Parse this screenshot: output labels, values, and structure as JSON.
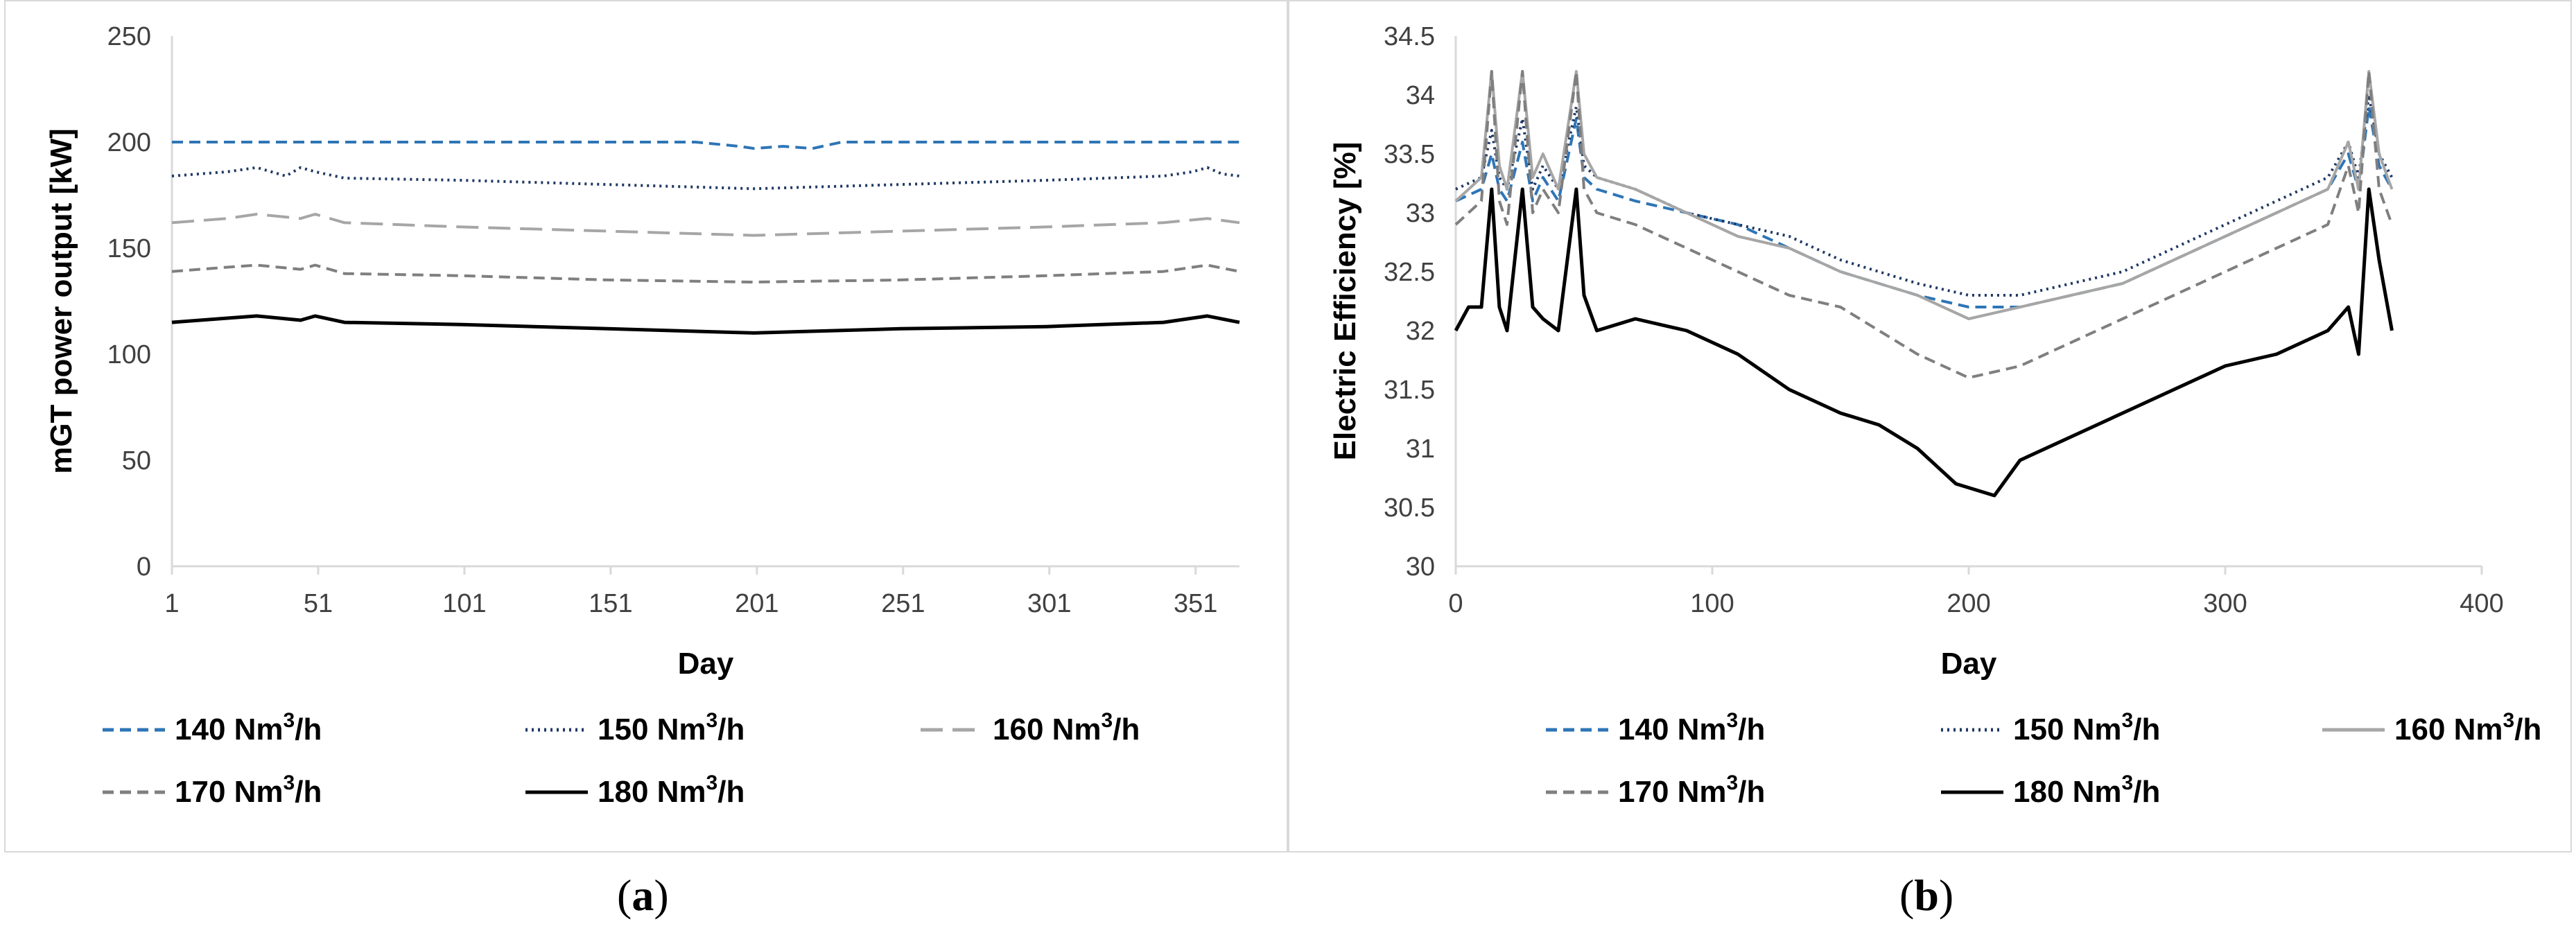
{
  "captions": {
    "a_open": "(",
    "a_letter": "a",
    "a_close": ")",
    "b_open": "(",
    "b_letter": "b",
    "b_close": ")"
  },
  "chart_data": [
    {
      "id": "a",
      "type": "line",
      "title": "",
      "xlabel": "Day",
      "ylabel": "mGT power output [kW]",
      "xlim": [
        1,
        366
      ],
      "ylim": [
        0,
        250
      ],
      "xticks": [
        1,
        51,
        101,
        151,
        201,
        251,
        301,
        351
      ],
      "yticks": [
        0,
        50,
        100,
        150,
        200,
        250
      ],
      "grid": false,
      "legend_position": "bottom",
      "series": [
        {
          "name": "140 Nm3/h",
          "label_main": "140 Nm",
          "label_sup": "3",
          "label_end": "/h",
          "color": "#2E75B6",
          "style": "dashed",
          "x": [
            1,
            100,
            180,
            195,
            200,
            210,
            220,
            230,
            250,
            366
          ],
          "y": [
            200,
            200,
            200,
            198,
            197,
            198,
            197,
            200,
            200,
            200
          ]
        },
        {
          "name": "150 Nm3/h",
          "label_main": "150 Nm",
          "label_sup": "3",
          "label_end": "/h",
          "color": "#1F3864",
          "style": "dotted",
          "x": [
            1,
            20,
            30,
            40,
            45,
            50,
            60,
            100,
            150,
            200,
            250,
            300,
            340,
            350,
            355,
            360,
            366
          ],
          "y": [
            184,
            186,
            188,
            184,
            188,
            186,
            183,
            182,
            180,
            178,
            180,
            182,
            184,
            186,
            188,
            185,
            184
          ]
        },
        {
          "name": "160 Nm3/h",
          "label_main": "160 Nm",
          "label_sup": "3",
          "label_end": "/h",
          "color": "#A6A6A6",
          "style": "longdash",
          "x": [
            1,
            20,
            30,
            45,
            50,
            60,
            100,
            150,
            200,
            250,
            300,
            340,
            355,
            366
          ],
          "y": [
            162,
            164,
            166,
            164,
            166,
            162,
            160,
            158,
            156,
            158,
            160,
            162,
            164,
            162
          ]
        },
        {
          "name": "170 Nm3/h",
          "label_main": "170 Nm",
          "label_sup": "3",
          "label_end": "/h",
          "color": "#7F7F7F",
          "style": "dashed",
          "x": [
            1,
            20,
            30,
            45,
            50,
            60,
            100,
            150,
            200,
            250,
            300,
            340,
            355,
            366
          ],
          "y": [
            139,
            141,
            142,
            140,
            142,
            138,
            137,
            135,
            134,
            135,
            137,
            139,
            142,
            139
          ]
        },
        {
          "name": "180 Nm3/h",
          "label_main": "180 Nm",
          "label_sup": "3",
          "label_end": "/h",
          "color": "#000000",
          "style": "solid",
          "x": [
            1,
            20,
            30,
            45,
            50,
            60,
            100,
            150,
            200,
            250,
            300,
            340,
            355,
            366
          ],
          "y": [
            115,
            117,
            118,
            116,
            118,
            115,
            114,
            112,
            110,
            112,
            113,
            115,
            118,
            115
          ]
        }
      ]
    },
    {
      "id": "b",
      "type": "line",
      "title": "",
      "xlabel": "Day",
      "ylabel": "Electric Efficiency [%]",
      "xlim": [
        0,
        400
      ],
      "ylim": [
        30,
        34.5
      ],
      "xticks": [
        0,
        100,
        200,
        300,
        400
      ],
      "yticks": [
        30,
        30.5,
        31,
        31.5,
        32,
        32.5,
        33,
        33.5,
        34,
        34.5
      ],
      "grid": false,
      "legend_position": "bottom",
      "series": [
        {
          "name": "140 Nm3/h",
          "label_main": "140 Nm",
          "label_sup": "3",
          "label_end": "/h",
          "color": "#2E75B6",
          "style": "dashed",
          "x": [
            0,
            10,
            14,
            17,
            20,
            26,
            30,
            34,
            40,
            47,
            50,
            55,
            70,
            90,
            110,
            130,
            150,
            165,
            180,
            200,
            220,
            240,
            260,
            280,
            300,
            320,
            340,
            348,
            352,
            356,
            360,
            365
          ],
          "y": [
            33.1,
            33.2,
            33.5,
            33.2,
            33.1,
            33.6,
            33.1,
            33.3,
            33.1,
            33.8,
            33.3,
            33.2,
            33.1,
            33.0,
            32.9,
            32.7,
            32.5,
            32.4,
            32.3,
            32.2,
            32.2,
            32.3,
            32.4,
            32.6,
            32.8,
            33.0,
            33.2,
            33.5,
            33.2,
            33.9,
            33.4,
            33.2
          ]
        },
        {
          "name": "150 Nm3/h",
          "label_main": "150 Nm",
          "label_sup": "3",
          "label_end": "/h",
          "color": "#1F3864",
          "style": "dotted",
          "x": [
            0,
            10,
            14,
            17,
            20,
            26,
            30,
            34,
            40,
            47,
            50,
            55,
            70,
            90,
            110,
            130,
            150,
            165,
            180,
            200,
            220,
            240,
            260,
            280,
            300,
            320,
            340,
            348,
            352,
            356,
            360,
            365
          ],
          "y": [
            33.2,
            33.3,
            33.7,
            33.3,
            33.2,
            33.8,
            33.2,
            33.4,
            33.2,
            33.9,
            33.4,
            33.3,
            33.2,
            33.0,
            32.9,
            32.8,
            32.6,
            32.5,
            32.4,
            32.3,
            32.3,
            32.4,
            32.5,
            32.7,
            32.9,
            33.1,
            33.3,
            33.6,
            33.3,
            34.0,
            33.5,
            33.3
          ]
        },
        {
          "name": "160 Nm3/h",
          "label_main": "160 Nm",
          "label_sup": "3",
          "label_end": "/h",
          "color": "#A6A6A6",
          "style": "solid",
          "x": [
            0,
            10,
            14,
            17,
            20,
            26,
            30,
            34,
            40,
            47,
            50,
            55,
            70,
            90,
            110,
            130,
            150,
            165,
            180,
            200,
            220,
            240,
            260,
            280,
            300,
            320,
            340,
            348,
            352,
            356,
            360,
            365
          ],
          "y": [
            33.1,
            33.3,
            34.2,
            33.4,
            33.2,
            34.2,
            33.3,
            33.5,
            33.2,
            34.2,
            33.5,
            33.3,
            33.2,
            33.0,
            32.8,
            32.7,
            32.5,
            32.4,
            32.3,
            32.1,
            32.2,
            32.3,
            32.4,
            32.6,
            32.8,
            33.0,
            33.2,
            33.6,
            33.2,
            34.2,
            33.5,
            33.2
          ]
        },
        {
          "name": "170 Nm3/h",
          "label_main": "170 Nm",
          "label_sup": "3",
          "label_end": "/h",
          "color": "#7F7F7F",
          "style": "dashed",
          "x": [
            0,
            10,
            14,
            17,
            20,
            26,
            30,
            34,
            40,
            47,
            50,
            55,
            70,
            90,
            110,
            130,
            150,
            165,
            180,
            200,
            220,
            240,
            260,
            280,
            300,
            320,
            340,
            348,
            352,
            356,
            360,
            365
          ],
          "y": [
            32.9,
            33.1,
            34.2,
            33.1,
            32.9,
            34.2,
            33.0,
            33.2,
            33.0,
            34.2,
            33.2,
            33.0,
            32.9,
            32.7,
            32.5,
            32.3,
            32.2,
            32.0,
            31.8,
            31.6,
            31.7,
            31.9,
            32.1,
            32.3,
            32.5,
            32.7,
            32.9,
            33.4,
            33.0,
            34.2,
            33.2,
            32.9
          ]
        },
        {
          "name": "180 Nm3/h",
          "label_main": "180 Nm",
          "label_sup": "3",
          "label_end": "/h",
          "color": "#000000",
          "style": "solid",
          "x": [
            0,
            5,
            10,
            14,
            17,
            20,
            26,
            30,
            34,
            40,
            47,
            50,
            55,
            70,
            90,
            110,
            130,
            150,
            165,
            180,
            195,
            210,
            220,
            240,
            260,
            280,
            300,
            320,
            340,
            348,
            352,
            356,
            360,
            365
          ],
          "y": [
            32.0,
            32.2,
            32.2,
            33.2,
            32.2,
            32.0,
            33.2,
            32.2,
            32.1,
            32.0,
            33.2,
            32.3,
            32.0,
            32.1,
            32.0,
            31.8,
            31.5,
            31.3,
            31.2,
            31.0,
            30.7,
            30.6,
            30.9,
            31.1,
            31.3,
            31.5,
            31.7,
            31.8,
            32.0,
            32.2,
            31.8,
            33.2,
            32.6,
            32.0
          ]
        }
      ]
    }
  ]
}
